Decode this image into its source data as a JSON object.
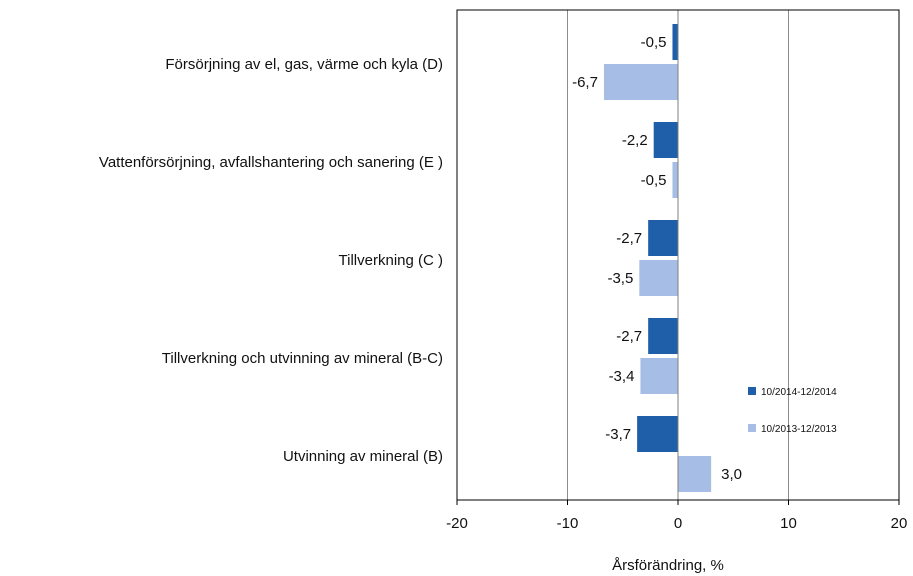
{
  "chart_data": {
    "type": "bar",
    "orientation": "horizontal",
    "categories": [
      "Försörjning av el, gas, värme och kyla (D)",
      "Vattenförsörjning, avfallshantering och sanering (E )",
      "Tillverkning (C )",
      "Tillverkning och utvinning av mineral (B-C)",
      "Utvinning av mineral  (B)"
    ],
    "series": [
      {
        "name": "10/2014-12/2014",
        "color": "#1f5ea8",
        "values": [
          -0.5,
          -2.2,
          -2.7,
          -2.7,
          -3.7
        ],
        "labels": [
          "-0,5",
          "-2,2",
          "-2,7",
          "-2,7",
          "-3,7"
        ]
      },
      {
        "name": "10/2013-12/2013",
        "color": "#a6bde6",
        "values": [
          -6.7,
          -0.5,
          -3.5,
          -3.4,
          3.0
        ],
        "labels": [
          "-6,7",
          "-0,5",
          "-3,5",
          "-3,4",
          "3,0"
        ]
      }
    ],
    "xlim": [
      -20,
      20
    ],
    "xticks": [
      -20,
      -10,
      0,
      10,
      20
    ],
    "xtick_labels": [
      "-20",
      "-10",
      "0",
      "10",
      "20"
    ],
    "xlabel": "Årsförändring, %",
    "ylabel": "",
    "title": "",
    "grid": "vertical",
    "legend_position": "bottom-right inside plot"
  }
}
